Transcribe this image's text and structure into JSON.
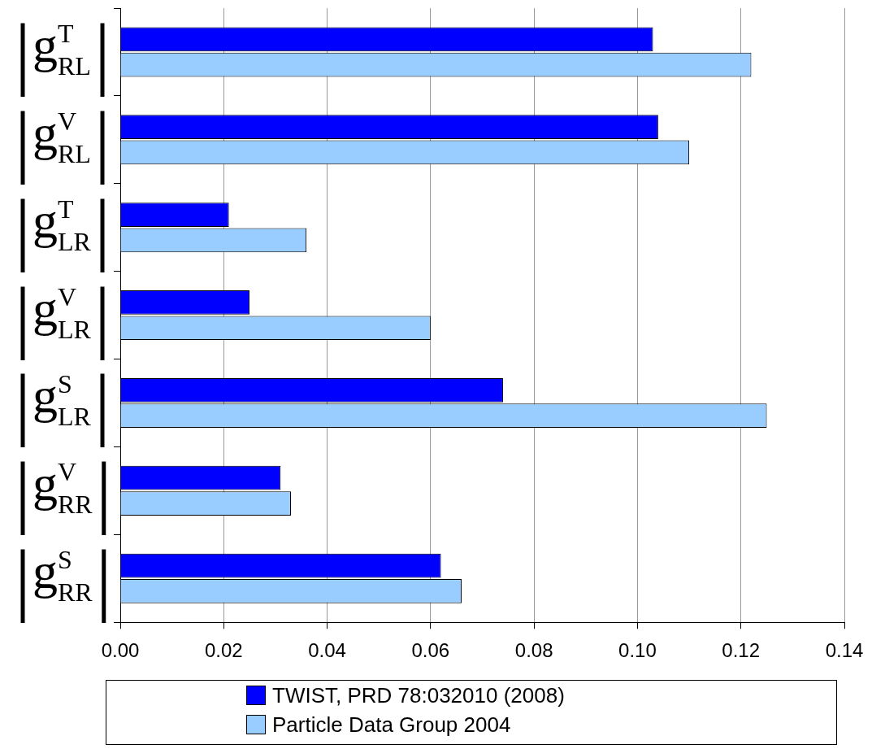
{
  "chart_data": {
    "type": "bar",
    "orientation": "horizontal",
    "categories": [
      "|g$^{T}$$_{RL}$|",
      "|g$^{V}$$_{RL}$|",
      "|g$^{T}$$_{LR}$|",
      "|g$^{V}$$_{LR}$|",
      "|g$^{S}$$_{LR}$|",
      "|g$^{V}$$_{RR}$|",
      "|g$^{S}$$_{RR}$|"
    ],
    "series": [
      {
        "name": "TWIST, PRD 78:032010 (2008)",
        "color": "#0000ff",
        "values": [
          0.103,
          0.104,
          0.021,
          0.025,
          0.074,
          0.031,
          0.062
        ]
      },
      {
        "name": "Particle Data Group 2004",
        "color": "#99ccff",
        "values": [
          0.122,
          0.11,
          0.036,
          0.06,
          0.125,
          0.033,
          0.066
        ]
      }
    ],
    "xlim": [
      0,
      0.14
    ],
    "xticks": [
      {
        "value": 0,
        "label": "0.00"
      },
      {
        "value": 0.02,
        "label": "0.02"
      },
      {
        "value": 0.04,
        "label": "0.04"
      },
      {
        "value": 0.06,
        "label": "0.06"
      },
      {
        "value": 0.08,
        "label": "0.08"
      },
      {
        "value": 0.1,
        "label": "0.10"
      },
      {
        "value": 0.12,
        "label": "0.12"
      },
      {
        "value": 0.14,
        "label": "0.14"
      }
    ],
    "grid": "x",
    "legend": "bottom"
  }
}
